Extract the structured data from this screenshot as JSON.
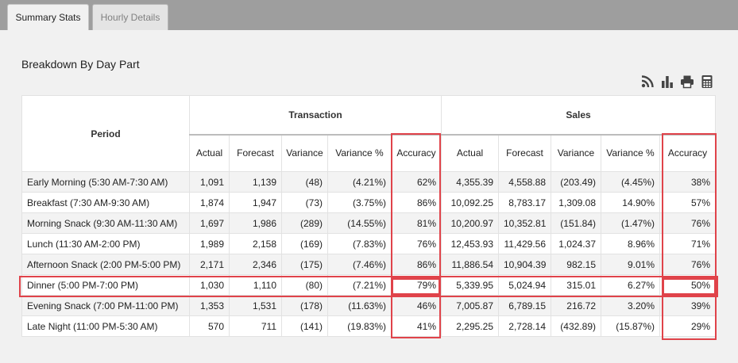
{
  "tabs": [
    {
      "label": "Summary Stats",
      "active": true
    },
    {
      "label": "Hourly Details",
      "active": false
    }
  ],
  "section_title": "Breakdown By Day Part",
  "toolbar": {
    "icons": [
      "rss-icon",
      "bar-chart-icon",
      "print-icon",
      "calculator-icon"
    ]
  },
  "table": {
    "period_header": "Period",
    "groups": [
      "Transaction",
      "Sales"
    ],
    "columns": [
      "Actual",
      "Forecast",
      "Variance",
      "Variance %",
      "Accuracy"
    ],
    "rows": [
      {
        "period": "Early Morning (5:30 AM-7:30 AM)",
        "t_actual": "1,091",
        "t_forecast": "1,139",
        "t_variance": "(48)",
        "t_variance_pct": "(4.21%)",
        "t_accuracy": "62%",
        "s_actual": "4,355.39",
        "s_forecast": "4,558.88",
        "s_variance": "(203.49)",
        "s_variance_pct": "(4.45%)",
        "s_accuracy": "38%"
      },
      {
        "period": "Breakfast (7:30 AM-9:30 AM)",
        "t_actual": "1,874",
        "t_forecast": "1,947",
        "t_variance": "(73)",
        "t_variance_pct": "(3.75%)",
        "t_accuracy": "86%",
        "s_actual": "10,092.25",
        "s_forecast": "8,783.17",
        "s_variance": "1,309.08",
        "s_variance_pct": "14.90%",
        "s_accuracy": "57%"
      },
      {
        "period": "Morning Snack (9:30 AM-11:30 AM)",
        "t_actual": "1,697",
        "t_forecast": "1,986",
        "t_variance": "(289)",
        "t_variance_pct": "(14.55%)",
        "t_accuracy": "81%",
        "s_actual": "10,200.97",
        "s_forecast": "10,352.81",
        "s_variance": "(151.84)",
        "s_variance_pct": "(1.47%)",
        "s_accuracy": "76%"
      },
      {
        "period": "Lunch (11:30 AM-2:00 PM)",
        "t_actual": "1,989",
        "t_forecast": "2,158",
        "t_variance": "(169)",
        "t_variance_pct": "(7.83%)",
        "t_accuracy": "76%",
        "s_actual": "12,453.93",
        "s_forecast": "11,429.56",
        "s_variance": "1,024.37",
        "s_variance_pct": "8.96%",
        "s_accuracy": "71%"
      },
      {
        "period": "Afternoon Snack (2:00 PM-5:00 PM)",
        "t_actual": "2,171",
        "t_forecast": "2,346",
        "t_variance": "(175)",
        "t_variance_pct": "(7.46%)",
        "t_accuracy": "86%",
        "s_actual": "11,886.54",
        "s_forecast": "10,904.39",
        "s_variance": "982.15",
        "s_variance_pct": "9.01%",
        "s_accuracy": "76%"
      },
      {
        "period": "Dinner (5:00 PM-7:00 PM)",
        "t_actual": "1,030",
        "t_forecast": "1,110",
        "t_variance": "(80)",
        "t_variance_pct": "(7.21%)",
        "t_accuracy": "79%",
        "s_actual": "5,339.95",
        "s_forecast": "5,024.94",
        "s_variance": "315.01",
        "s_variance_pct": "6.27%",
        "s_accuracy": "50%"
      },
      {
        "period": "Evening Snack (7:00 PM-11:00 PM)",
        "t_actual": "1,353",
        "t_forecast": "1,531",
        "t_variance": "(178)",
        "t_variance_pct": "(11.63%)",
        "t_accuracy": "46%",
        "s_actual": "7,005.87",
        "s_forecast": "6,789.15",
        "s_variance": "216.72",
        "s_variance_pct": "3.20%",
        "s_accuracy": "39%"
      },
      {
        "period": "Late Night (11:00 PM-5:30 AM)",
        "t_actual": "570",
        "t_forecast": "711",
        "t_variance": "(141)",
        "t_variance_pct": "(19.83%)",
        "t_accuracy": "41%",
        "s_actual": "2,295.25",
        "s_forecast": "2,728.14",
        "s_variance": "(432.89)",
        "s_variance_pct": "(15.87%)",
        "s_accuracy": "29%"
      }
    ]
  },
  "highlight_color": "#e0434a"
}
